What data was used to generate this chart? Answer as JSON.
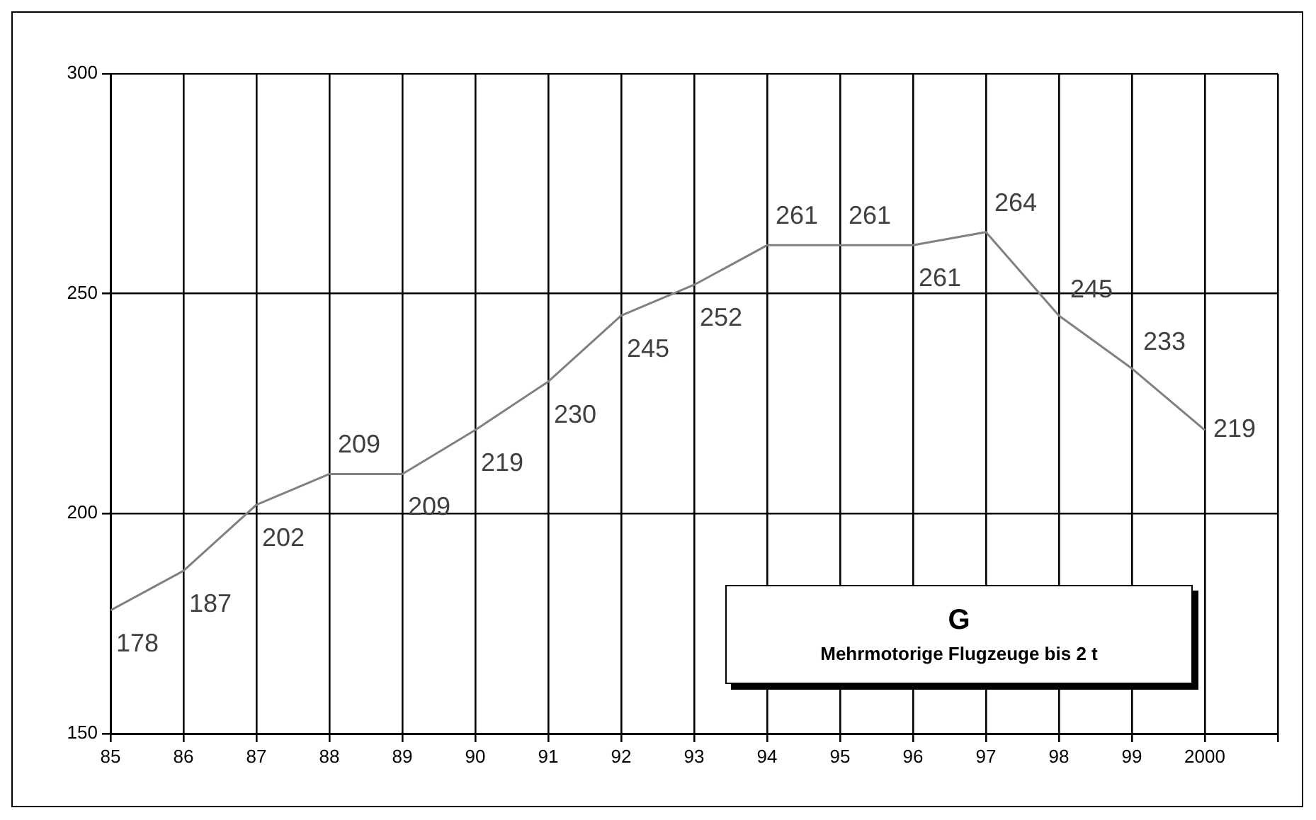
{
  "chart_data": {
    "type": "line",
    "x": [
      1985,
      1986,
      1987,
      1988,
      1989,
      1990,
      1991,
      1992,
      1993,
      1994,
      1995,
      1996,
      1997,
      1998,
      1999,
      2000
    ],
    "series": [
      {
        "color": "#808080",
        "values": [
          178,
          187,
          202,
          209,
          209,
          219,
          230,
          245,
          252,
          261,
          261,
          261,
          264,
          245,
          233,
          219
        ]
      }
    ],
    "xlim": [
      1985,
      2001
    ],
    "xticks": [
      {
        "value": 1985,
        "label": "85"
      },
      {
        "value": 1986,
        "label": "86"
      },
      {
        "value": 1987,
        "label": "87"
      },
      {
        "value": 1988,
        "label": "88"
      },
      {
        "value": 1989,
        "label": "89"
      },
      {
        "value": 1990,
        "label": "90"
      },
      {
        "value": 1991,
        "label": "91"
      },
      {
        "value": 1992,
        "label": "92"
      },
      {
        "value": 1993,
        "label": "93"
      },
      {
        "value": 1994,
        "label": "94"
      },
      {
        "value": 1995,
        "label": "95"
      },
      {
        "value": 1996,
        "label": "96"
      },
      {
        "value": 1997,
        "label": "97"
      },
      {
        "value": 1998,
        "label": "98"
      },
      {
        "value": 1999,
        "label": "99"
      },
      {
        "value": 2000,
        "label": "2000"
      },
      {
        "value": 2001,
        "label": null
      }
    ],
    "ylim": [
      150,
      300
    ],
    "yticks": [
      150,
      200,
      250,
      300
    ],
    "grid": true,
    "legend": false,
    "marker": "none",
    "line_style": "solid",
    "data_labels": true,
    "annotations": [
      "G",
      "Mehrmotorige Flugzeuge bis 2 t"
    ]
  }
}
